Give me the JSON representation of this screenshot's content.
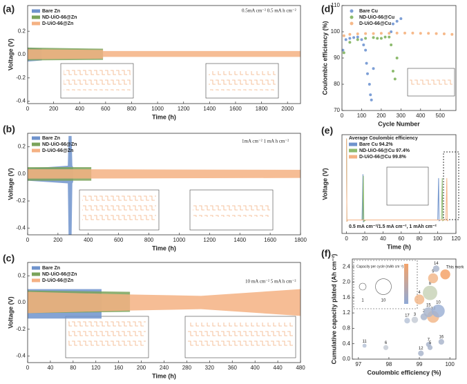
{
  "chart_data": [
    {
      "type": "band",
      "panel": "(a)",
      "x_label": "Time (h)",
      "y_label": "Voltage (V)",
      "annotation": "0.5mA cm⁻²  0.5 mA h cm⁻²",
      "xlim": [
        0,
        2100
      ],
      "xticks": [
        0,
        200,
        400,
        600,
        800,
        1000,
        1200,
        1400,
        1600,
        1800,
        2000
      ],
      "ylim": [
        -0.42,
        0.42
      ],
      "yticks": [
        0.2,
        {
          "value": 0,
          "label": "0.0"
        },
        -0.2,
        -0.4
      ],
      "series": [
        {
          "name": "Bare Zn",
          "color": "#6f93cc",
          "x": [
            0,
            110
          ],
          "upper": [
            0.06,
            0.05
          ],
          "lower": [
            -0.06,
            -0.05
          ]
        },
        {
          "name": "ND-UiO-66@Zn",
          "color": "#7aa35a",
          "x": [
            0,
            580
          ],
          "upper": [
            0.06,
            0.05
          ],
          "lower": [
            -0.05,
            -0.045
          ]
        },
        {
          "name": "D-UiO-66@Zn",
          "color": "#f4b183",
          "x": [
            0,
            580,
            580,
            2100
          ],
          "upper": [
            0.045,
            0.04,
            0.03,
            0.03
          ],
          "lower": [
            -0.04,
            -0.035,
            -0.02,
            -0.02
          ]
        }
      ]
    },
    {
      "type": "band",
      "panel": "(b)",
      "x_label": "Time (h)",
      "y_label": "Voltage (V)",
      "annotation": "1mA cm⁻²  1 mA h cm⁻²",
      "xlim": [
        0,
        1800
      ],
      "xticks": [
        0,
        200,
        400,
        600,
        800,
        1000,
        1200,
        1400,
        1600,
        1800
      ],
      "ylim": [
        -0.45,
        0.3
      ],
      "yticks": [
        0.2,
        {
          "value": 0,
          "label": "0.0"
        },
        -0.2,
        -0.4
      ],
      "series": [
        {
          "name": "Bare Zn",
          "color": "#6f93cc",
          "x": [
            0,
            265,
            270,
            290,
            295,
            300
          ],
          "upper": [
            0.04,
            0.06,
            0.28,
            0.28,
            0.06,
            0.05
          ],
          "lower": [
            -0.05,
            -0.07,
            -0.45,
            -0.45,
            -0.07,
            -0.06
          ]
        },
        {
          "name": "ND-UiO-66@Zn",
          "color": "#7aa35a",
          "x": [
            0,
            420
          ],
          "upper": [
            0.05,
            0.05
          ],
          "lower": [
            -0.05,
            -0.05
          ]
        },
        {
          "name": "D-UiO-66@Zn",
          "color": "#f4b183",
          "x": [
            0,
            1800
          ],
          "upper": [
            0.035,
            0.03
          ],
          "lower": [
            -0.035,
            -0.03
          ]
        }
      ]
    },
    {
      "type": "band",
      "panel": "(c)",
      "x_label": "Time (h)",
      "y_label": "Voltage (V)",
      "annotation": "10 mA cm⁻²  5 mA h cm⁻²",
      "xlim": [
        0,
        480
      ],
      "xticks": [
        0,
        40,
        80,
        120,
        160,
        200,
        240,
        280,
        320,
        360,
        400,
        440,
        480
      ],
      "ylim": [
        -0.45,
        0.3
      ],
      "yticks": [
        0.2,
        {
          "value": 0,
          "label": "0.0"
        },
        -0.2,
        -0.4
      ],
      "series": [
        {
          "name": "Bare Zn",
          "color": "#6f93cc",
          "x": [
            0,
            130
          ],
          "upper": [
            0.1,
            0.1
          ],
          "lower": [
            -0.12,
            -0.12
          ]
        },
        {
          "name": "ND-UiO-66@Zn",
          "color": "#7aa35a",
          "x": [
            0,
            180
          ],
          "upper": [
            0.09,
            0.08
          ],
          "lower": [
            -0.08,
            -0.07
          ]
        },
        {
          "name": "D-UiO-66@Zn",
          "color": "#f4b183",
          "x": [
            0,
            180,
            305,
            480
          ],
          "upper": [
            0.08,
            0.06,
            0.05,
            0.1
          ],
          "lower": [
            -0.08,
            -0.06,
            -0.05,
            -0.1
          ]
        }
      ]
    },
    {
      "type": "scatter",
      "panel": "(d)",
      "x_label": "Cycle Number",
      "y_label": "Coulombic efficiency (%)",
      "xlim": [
        0,
        580
      ],
      "xticks": [
        0,
        100,
        200,
        300,
        400,
        500
      ],
      "ylim": [
        70,
        110
      ],
      "yticks": [
        70,
        80,
        90,
        100,
        110
      ],
      "series": [
        {
          "name": "Bare Cu",
          "color": "#7d9fd6",
          "x": [
            5,
            20,
            40,
            60,
            80,
            100,
            110,
            120,
            125,
            130,
            140,
            145,
            150,
            160,
            250,
            260,
            280,
            300
          ],
          "values": [
            93,
            97,
            97.5,
            97.8,
            98,
            97,
            95,
            93,
            88,
            84,
            80,
            76,
            74,
            86,
            100,
            103,
            104,
            105
          ]
        },
        {
          "name": "ND-UiO-66@Cu",
          "color": "#8dbb6e",
          "x": [
            10,
            40,
            80,
            120,
            160,
            180,
            200,
            220,
            240,
            250,
            260,
            270,
            280
          ],
          "values": [
            92,
            96,
            97,
            97.5,
            97.8,
            97.5,
            97.5,
            98,
            98,
            95,
            85,
            82,
            90
          ]
        },
        {
          "name": "D-UiO-66@Cu",
          "color": "#f6b98a",
          "x": [
            10,
            40,
            80,
            120,
            160,
            200,
            240,
            280,
            320,
            360,
            400,
            440,
            480,
            520,
            560
          ],
          "values": [
            98.5,
            99,
            99.2,
            99.3,
            99.3,
            99.4,
            99.4,
            99.5,
            99.5,
            99.5,
            99.4,
            99.4,
            99.3,
            99.2,
            99
          ]
        }
      ]
    },
    {
      "type": "line",
      "panel": "(e)",
      "x_label": "Time (h)",
      "y_label": "Voltage (V)",
      "legend_title": "Average Coulombic efficiency",
      "annotation": "0.5 mA cm⁻²/1.5 mA cm⁻², 1 mAh cm⁻²",
      "xlim": [
        -5,
        120
      ],
      "xticks": [
        0,
        20,
        40,
        60,
        80,
        100,
        120
      ],
      "ylim": [
        -0.25,
        1.0
      ],
      "series": [
        {
          "name": "Bare Cu  94.2%",
          "color": "#6f93cc",
          "x": [
            0,
            0.4,
            1,
            17,
            18,
            18.5,
            20,
            100,
            101,
            101.5,
            103
          ],
          "values": [
            0.95,
            -0.1,
            -0.08,
            -0.08,
            0.5,
            -0.1,
            -0.08,
            -0.08,
            0.45,
            -0.09,
            -0.08
          ]
        },
        {
          "name": "ND-UiO-66@Cu  97.4%",
          "color": "#8dbb6e",
          "x": [
            0,
            0.4,
            1,
            17.5,
            18.5,
            19,
            21,
            104,
            105,
            105.5,
            107
          ],
          "values": [
            0.95,
            -0.1,
            -0.08,
            -0.08,
            0.48,
            -0.1,
            -0.08,
            -0.08,
            0.45,
            -0.09,
            -0.08
          ]
        },
        {
          "name": "D-UiO-66@Cu  99.8%",
          "color": "#f4b183",
          "x": [
            0,
            0.4,
            1,
            109,
            110,
            110.5,
            112
          ],
          "values": [
            0.95,
            -0.1,
            -0.08,
            -0.08,
            0.45,
            -0.09,
            -0.08
          ]
        }
      ]
    },
    {
      "type": "bubble",
      "panel": "(f)",
      "x_label": "Coulombic efficiency (%)",
      "y_label": "Cumulative capacity plated (Ah cm⁻²)",
      "size_title": "Capacity per cycle (mAh cm⁻²)",
      "size_legend": [
        1,
        10
      ],
      "xlim": [
        96.8,
        100.2
      ],
      "xticks": [
        97,
        98,
        99,
        100
      ],
      "ylim": [
        0,
        2.6
      ],
      "yticks": [
        {
          "value": 0,
          "label": "0.0"
        },
        0.4,
        0.8,
        1.2,
        1.6,
        {
          "value": 2,
          "label": "2.0"
        },
        2.4
      ],
      "points": [
        {
          "label": "11",
          "x": 97.2,
          "y": 0.35,
          "size": 0.1,
          "color": "#b8c4d8"
        },
        {
          "label": "6",
          "x": 97.9,
          "y": 0.3,
          "size": 0.3,
          "color": "#c7cdd6"
        },
        {
          "label": "12",
          "x": 99.05,
          "y": 0.15,
          "size": 0.5,
          "color": "#aab6cc"
        },
        {
          "label": "7",
          "x": 99.3,
          "y": 0.38,
          "size": 0.3,
          "color": "#aab6cc"
        },
        {
          "label": "5",
          "x": 99.35,
          "y": 0.3,
          "size": 0.3,
          "color": "#aab6cc"
        },
        {
          "label": "16",
          "x": 99.72,
          "y": 0.45,
          "size": 0.5,
          "color": "#aab6cc"
        },
        {
          "label": "17",
          "x": 98.6,
          "y": 1.0,
          "size": 0.5,
          "color": "#b8c4d8"
        },
        {
          "label": "3",
          "x": 98.85,
          "y": 1.02,
          "size": 0.8,
          "color": "#c7cdd6"
        },
        {
          "label": "2",
          "x": 99.15,
          "y": 1.1,
          "size": 1,
          "color": "#aab6cc"
        },
        {
          "label": "13",
          "x": 99.45,
          "y": 1.1,
          "size": 5,
          "color": "#f2b98c"
        },
        {
          "label": "15",
          "x": 99.3,
          "y": 1.22,
          "size": 3,
          "color": "#aab6cc"
        },
        {
          "label": "10",
          "x": 99.62,
          "y": 1.25,
          "size": 6,
          "color": "#9fb3d6"
        },
        {
          "label": "4",
          "x": 99.0,
          "y": 1.55,
          "size": 3,
          "color": "#f2b98c"
        },
        {
          "label": "8",
          "x": 99.35,
          "y": 1.72,
          "size": 8,
          "color": "#c9d4b8"
        },
        {
          "label": "9",
          "x": 99.45,
          "y": 2.1,
          "size": 3,
          "color": "#f2b98c"
        },
        {
          "label": "14",
          "x": 99.55,
          "y": 2.35,
          "size": 0.8,
          "color": "#aab6cc"
        },
        {
          "label": "This work",
          "x": 99.85,
          "y": 2.2,
          "size": 3,
          "color": "#f4a36a"
        }
      ]
    }
  ]
}
